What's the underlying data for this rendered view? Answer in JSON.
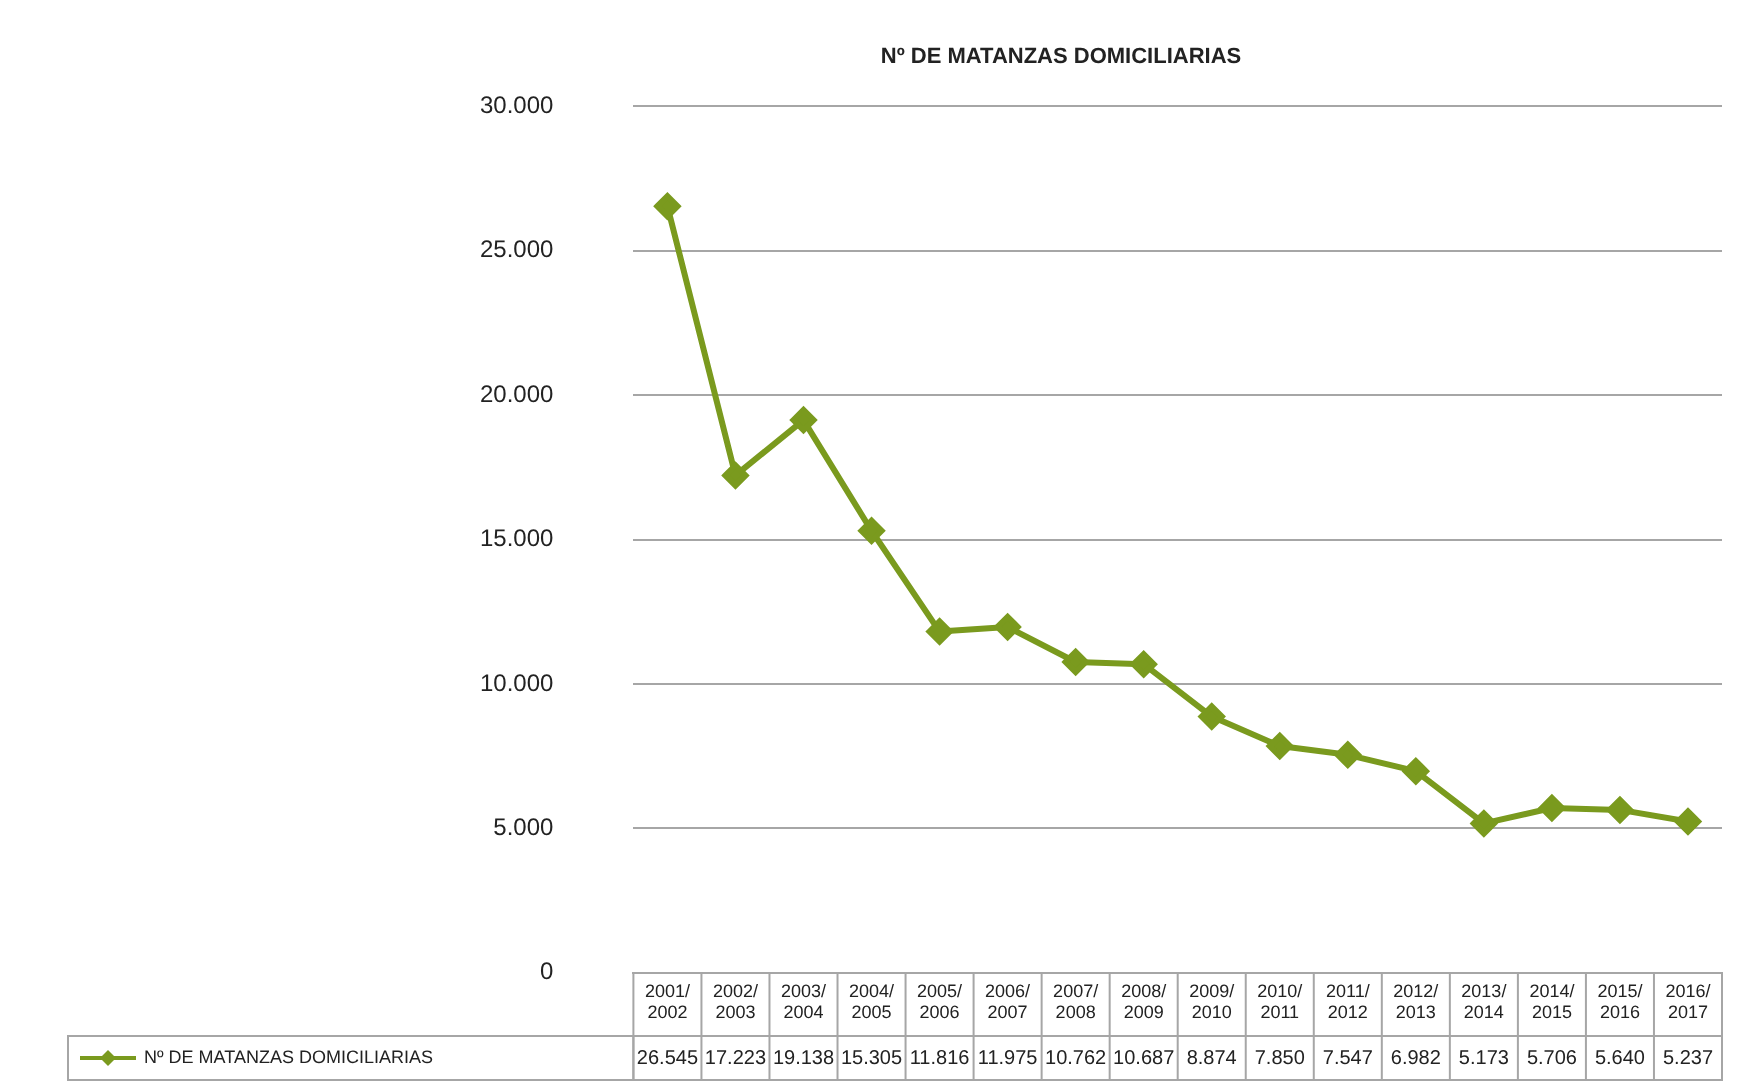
{
  "chart_data": {
    "type": "line",
    "title": "Nº DE MATANZAS DOMICILIARIAS",
    "categories": [
      "2001/2002",
      "2002/2003",
      "2003/2004",
      "2004/2005",
      "2005/2006",
      "2006/2007",
      "2007/2008",
      "2008/2009",
      "2009/2010",
      "2010/2011",
      "2011/2012",
      "2012/2013",
      "2013/2014",
      "2014/2015",
      "2015/2016",
      "2016/2017"
    ],
    "series": [
      {
        "name": "Nº DE MATANZAS DOMICILIARIAS",
        "color": "#7a9a1e",
        "values": [
          26545,
          17223,
          19138,
          15305,
          11816,
          11975,
          10762,
          10687,
          8874,
          7850,
          7547,
          6982,
          5173,
          5706,
          5640,
          5237
        ],
        "value_labels": [
          "26.545",
          "17.223",
          "19.138",
          "15.305",
          "11.816",
          "11.975",
          "10.762",
          "10.687",
          "8.874",
          "7.850",
          "7.547",
          "6.982",
          "5.173",
          "5.706",
          "5.640",
          "5.237"
        ]
      }
    ],
    "ylim": [
      0,
      30000
    ],
    "yticks": [
      0,
      {
        "value": 5000,
        "label": "5.000"
      },
      {
        "value": 10000,
        "label": "10.000"
      },
      {
        "value": 15000,
        "label": "15.000"
      },
      {
        "value": 20000,
        "label": "20.000"
      },
      {
        "value": 25000,
        "label": "25.000"
      },
      {
        "value": 30000,
        "label": "30.000"
      }
    ],
    "grid": "y",
    "legend": "bottom left",
    "marker": "diamond",
    "line_style": "solid"
  }
}
